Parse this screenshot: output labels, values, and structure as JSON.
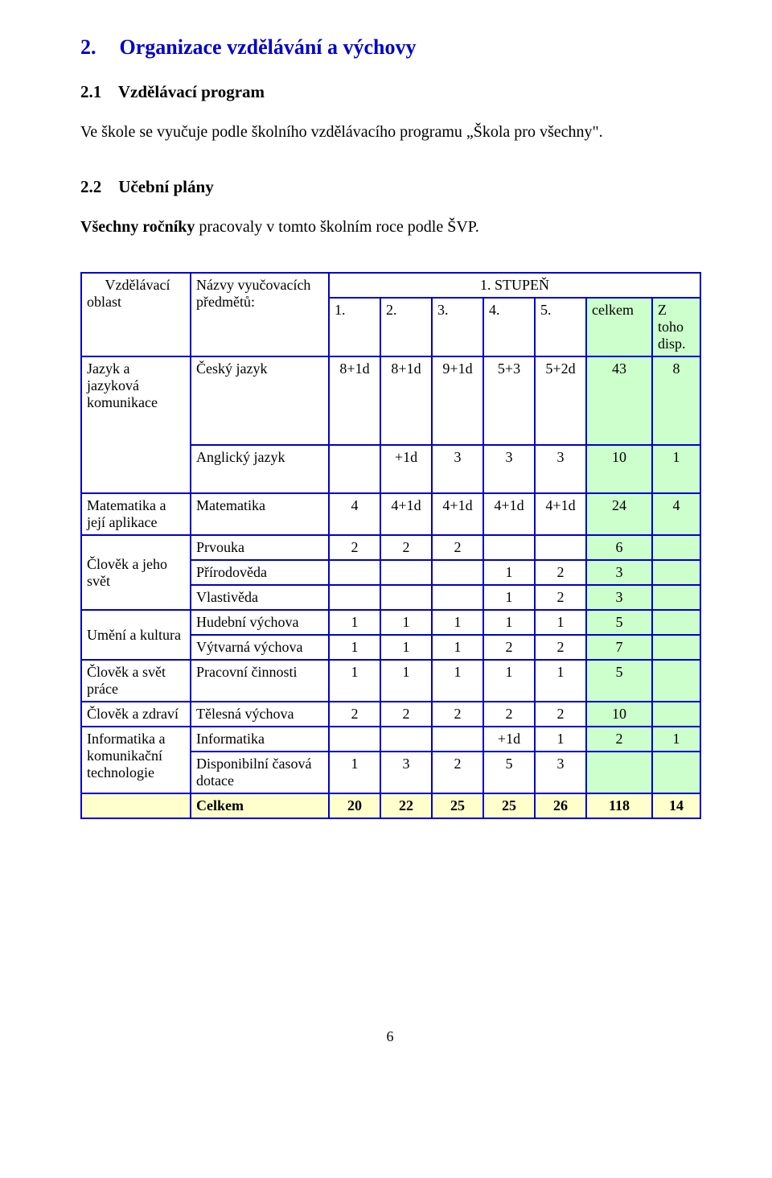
{
  "colors": {
    "heading_blue": "#0000cc",
    "table_border": "#0000cc",
    "hl_green": "#ccffcc",
    "hl_yellow": "#ffffcc",
    "text": "#000000",
    "background": "#ffffff"
  },
  "fonts": {
    "family": "Times New Roman",
    "h1_size_pt": 20,
    "h2_size_pt": 16,
    "body_size_pt": 15,
    "table_size_pt": 14
  },
  "h1": {
    "number": "2.",
    "text": "Organizace vzdělávání a výchovy"
  },
  "s21": {
    "number": "2.1",
    "title": "Vzdělávací program",
    "para": "Ve škole se vyučuje podle školního vzdělávacího programu „Škola pro všechny\"."
  },
  "s22": {
    "number": "2.2",
    "title": "Učební plány",
    "para_prefix": "Všechny  ročníky",
    "para_rest": " pracovaly v tomto školním roce podle ŠVP."
  },
  "table": {
    "stupen": "1. STUPEŇ",
    "head_oblast": "     Vzdělávací oblast",
    "head_predmety": "Názvy vyučovacích předmětů:",
    "cols": {
      "c1": "1.",
      "c2": "2.",
      "c3": "3.",
      "c4": "4.",
      "c5": "5.",
      "celkem": "celkem",
      "disp": "Z toho disp."
    },
    "oblast": {
      "jazyk": "Jazyk a jazyková komunikace",
      "matematika": "Matematika a její aplikace",
      "clovek_svet": "Člověk a jeho svět",
      "umeni": "Umění a kultura",
      "clovek_prace": "Člověk a svět práce",
      "clovek_zdravi": "Člověk a zdraví",
      "informatika": "Informatika a komunikační technologie"
    },
    "rows": {
      "cesky": {
        "label": "Český jazyk",
        "v": [
          "8+1d",
          "8+1d",
          "9+1d",
          "5+3",
          "5+2d",
          "43",
          "8"
        ]
      },
      "anglicky": {
        "label": "Anglický jazyk",
        "v": [
          "",
          "+1d",
          "3",
          "3",
          "3",
          "10",
          "1"
        ]
      },
      "matematika": {
        "label": "Matematika",
        "v": [
          "4",
          "4+1d",
          "4+1d",
          "4+1d",
          "4+1d",
          "24",
          "4"
        ]
      },
      "prvouka": {
        "label": "Prvouka",
        "v": [
          "2",
          "2",
          "2",
          "",
          "",
          "6",
          ""
        ]
      },
      "prirodoveda": {
        "label": "Přírodověda",
        "v": [
          "",
          "",
          "",
          "1",
          "2",
          "3",
          ""
        ]
      },
      "vlastiveda": {
        "label": "Vlastivěda",
        "v": [
          "",
          "",
          "",
          "1",
          "2",
          "3",
          ""
        ]
      },
      "hudebni": {
        "label": "Hudební výchova",
        "v": [
          "1",
          "1",
          "1",
          "1",
          "1",
          "5",
          ""
        ]
      },
      "vytvarna": {
        "label": "Výtvarná výchova",
        "v": [
          "1",
          "1",
          "1",
          "2",
          "2",
          "7",
          ""
        ]
      },
      "pracovni": {
        "label": "Pracovní činnosti",
        "v": [
          "1",
          "1",
          "1",
          "1",
          "1",
          "5",
          ""
        ]
      },
      "telesna": {
        "label": "Tělesná výchova",
        "v": [
          "2",
          "2",
          "2",
          "2",
          "2",
          "10",
          ""
        ]
      },
      "informatika": {
        "label": "Informatika",
        "v": [
          "",
          "",
          "",
          "+1d",
          "1",
          "2",
          "1"
        ]
      },
      "disponibilni": {
        "label": "Disponibilní časová dotace",
        "v": [
          "1",
          "3",
          "2",
          "5",
          "3",
          "",
          ""
        ]
      },
      "celkem": {
        "label": "Celkem",
        "v": [
          "20",
          "22",
          "25",
          "25",
          "26",
          "118",
          "14"
        ]
      }
    }
  },
  "page_number": "6"
}
